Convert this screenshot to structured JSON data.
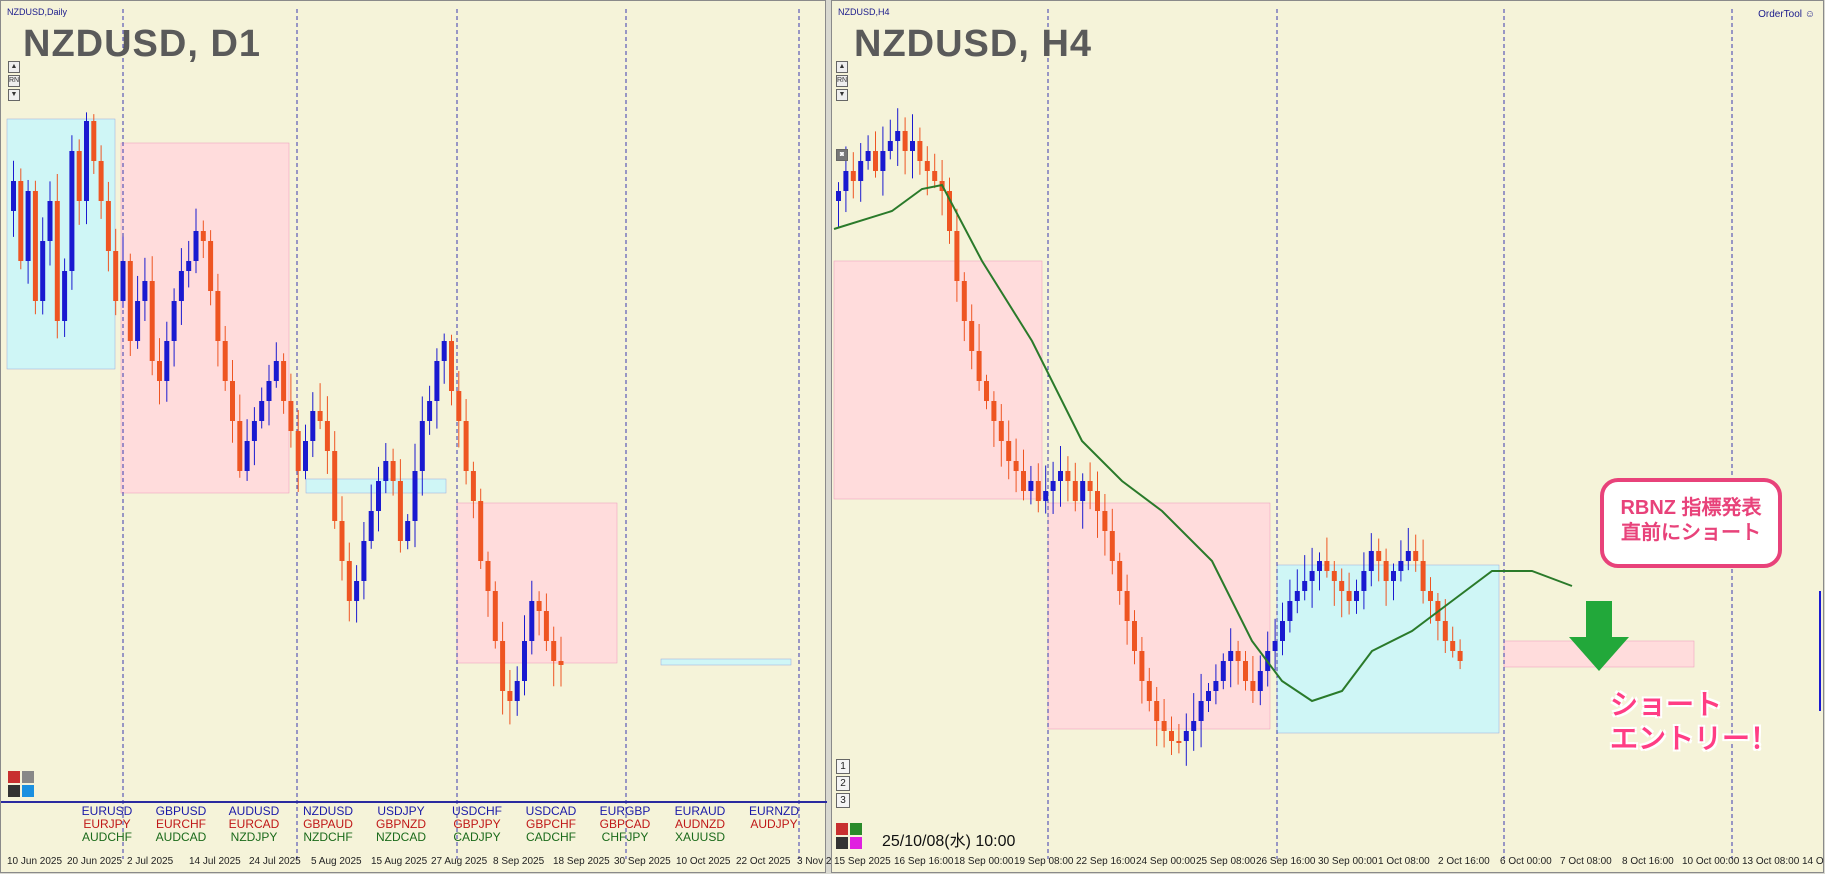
{
  "left": {
    "window_title": "NZDUSD,Daily",
    "big_title": "NZDUSD, D1",
    "side_buttons": [
      "▲",
      "RN",
      "▼"
    ],
    "symbols": [
      {
        "top": "EURUSD",
        "mid": "EURJPY",
        "bot": "AUDCHF"
      },
      {
        "top": "GBPUSD",
        "mid": "EURCHF",
        "bot": "AUDCAD"
      },
      {
        "top": "AUDUSD",
        "mid": "EURCAD",
        "bot": "NZDJPY"
      },
      {
        "top": "NZDUSD",
        "mid": "GBPAUD",
        "bot": "NZDCHF"
      },
      {
        "top": "USDJPY",
        "mid": "GBPNZD",
        "bot": "NZDCAD"
      },
      {
        "top": "USDCHF",
        "mid": "GBPJPY",
        "bot": "CADJPY"
      },
      {
        "top": "USDCAD",
        "mid": "GBPCHF",
        "bot": "CADCHF"
      },
      {
        "top": "EURGBP",
        "mid": "GBPCAD",
        "bot": "CHFJPY"
      },
      {
        "top": "EURAUD",
        "mid": "AUDNZD",
        "bot": "XAUUSD"
      },
      {
        "top": "EURNZD",
        "mid": "AUDJPY",
        "bot": ""
      }
    ],
    "dates": [
      "10 Jun 2025",
      "20 Jun 2025",
      "2 Jul 2025",
      "14 Jul 2025",
      "24 Jul 2025",
      "5 Aug 2025",
      "15 Aug 2025",
      "27 Aug 2025",
      "8 Sep 2025",
      "18 Sep 2025",
      "30 Sep 2025",
      "10 Oct 2025",
      "22 Oct 2025",
      "3 Nov 2"
    ]
  },
  "right": {
    "window_title": "NZDUSD,H4",
    "big_title": "NZDUSD, H4",
    "order_tool": "OrderTool",
    "num_buttons": [
      "1",
      "2",
      "3"
    ],
    "datetime": "25/10/08(水) 10:00",
    "dates": [
      "15 Sep 2025",
      "16 Sep 16:00",
      "18 Sep 00:00",
      "19 Sep 08:00",
      "22 Sep 16:00",
      "24 Sep 00:00",
      "25 Sep 08:00",
      "26 Sep 16:00",
      "30 Sep 00:00",
      "1 Oct 08:00",
      "2 Oct 16:00",
      "6 Oct 00:00",
      "7 Oct 08:00",
      "8 Oct 16:00",
      "10 Oct 00:00",
      "13 Oct 08:00",
      "14 O"
    ],
    "callout": {
      "line1": "RBNZ 指標発表",
      "line2": "直前にショート"
    },
    "entry": {
      "line1": "ショート",
      "line2": "エントリー！"
    }
  },
  "colors": {
    "background": "#f5f3d9",
    "bull": "#1a1ad0",
    "bear": "#ee5522",
    "ma": "#2a7a2a",
    "zone_red": "#ffd6d6",
    "zone_blue": "#cff6f6",
    "accent": "#e8427a",
    "arrow": "#22a83a"
  }
}
